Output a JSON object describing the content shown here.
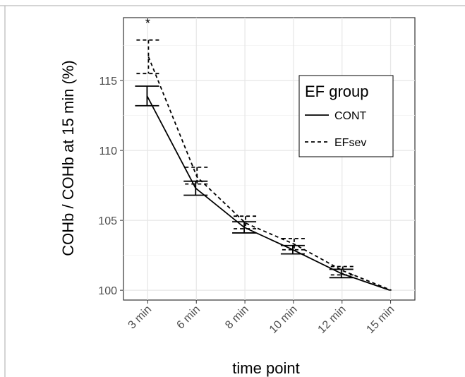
{
  "chart_data": {
    "type": "line",
    "title": "",
    "xlabel": "time point",
    "ylabel": "COHb / COHb at 15 min (%)",
    "categories": [
      "3 min",
      "6 min",
      "8 min",
      "10 min",
      "12 min",
      "15 min"
    ],
    "yticks": [
      "100",
      "105",
      "110",
      "115"
    ],
    "ylim": [
      99.3,
      119.5
    ],
    "grid": true,
    "legend": {
      "title": "EF group",
      "position": "top-right",
      "entries": [
        {
          "label": "CONT",
          "style": "solid"
        },
        {
          "label": "EFsev",
          "style": "dashed"
        }
      ]
    },
    "series": [
      {
        "name": "CONT",
        "style": "solid",
        "values": [
          113.9,
          107.3,
          104.5,
          102.9,
          101.2,
          100.0
        ],
        "err_low": [
          113.2,
          106.8,
          104.1,
          102.6,
          100.9,
          100.0
        ],
        "err_high": [
          114.6,
          107.8,
          104.9,
          103.2,
          101.5,
          100.0
        ]
      },
      {
        "name": "EFsev",
        "style": "dashed",
        "values": [
          116.7,
          108.1,
          104.8,
          103.3,
          101.4,
          100.0
        ],
        "err_low": [
          115.5,
          107.6,
          104.4,
          102.9,
          101.1,
          100.0
        ],
        "err_high": [
          117.9,
          108.8,
          105.3,
          103.7,
          101.7,
          100.0
        ]
      }
    ],
    "annotations": [
      {
        "text": "*",
        "category": "3 min",
        "y": 119.1
      }
    ]
  }
}
